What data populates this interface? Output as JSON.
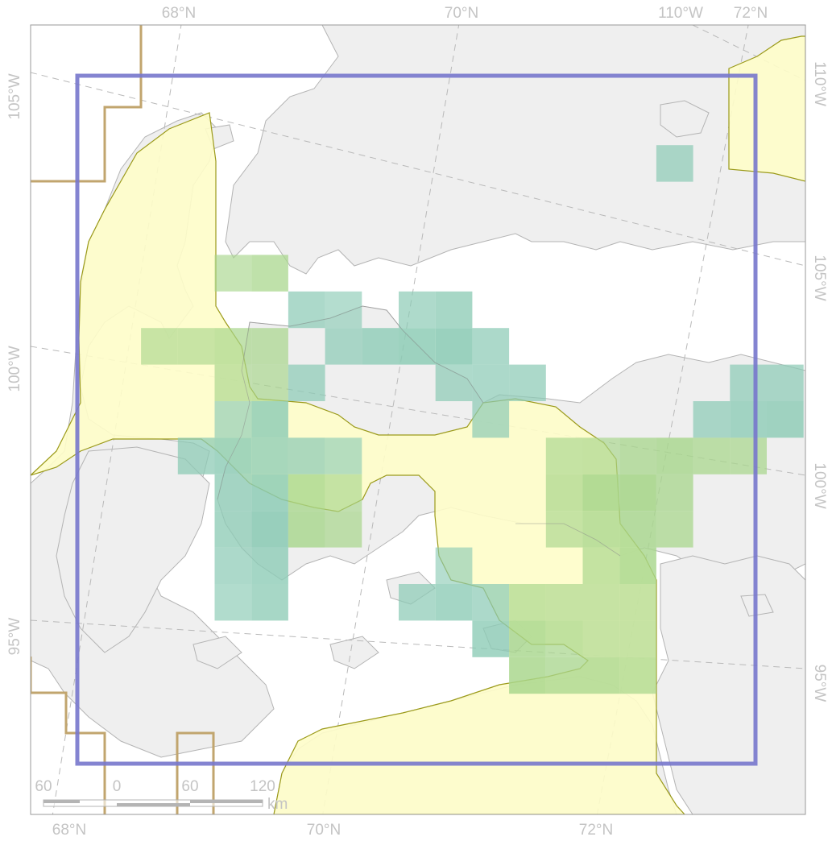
{
  "graticule_labels": {
    "top": [
      "68°N",
      "70°N",
      "110°W",
      "72°N"
    ],
    "bottom": [
      "68°N",
      "70°N",
      "72°N"
    ],
    "left": [
      "105°W",
      "100°W",
      "95°W"
    ],
    "right": [
      "110°W",
      "105°W",
      "100°W",
      "95°W"
    ]
  },
  "scale_bar": {
    "ticks": [
      "60",
      "0",
      "60",
      "120"
    ],
    "unit": "km"
  },
  "colors": {
    "background": "#ffffff",
    "land": "#efefef",
    "coast": "#b4b4b4",
    "graticule": "#b9b9b9",
    "zone_fill": "#fefdc9",
    "zone_edge": "#9b9a1a",
    "grid_teal": "#8ccbb5",
    "grid_green": "#a8d68c",
    "frame": "#7777cc",
    "boundary": "#c1a56e"
  },
  "sighting_grid_cells": [
    {
      "col": 5,
      "row": 6,
      "density": 0.45
    },
    {
      "col": 6,
      "row": 6,
      "density": 0.65
    },
    {
      "col": 7,
      "row": 7,
      "density": 0.6
    },
    {
      "col": 8,
      "row": 7,
      "density": 0.45
    },
    {
      "col": 10,
      "row": 7,
      "density": 0.55
    },
    {
      "col": 11,
      "row": 7,
      "density": 0.7
    },
    {
      "col": 3,
      "row": 8,
      "density": 0.4
    },
    {
      "col": 4,
      "row": 8,
      "density": 0.4
    },
    {
      "col": 5,
      "row": 8,
      "density": 0.55
    },
    {
      "col": 6,
      "row": 8,
      "density": 0.55
    },
    {
      "col": 8,
      "row": 8,
      "density": 0.6
    },
    {
      "col": 9,
      "row": 8,
      "density": 0.75
    },
    {
      "col": 10,
      "row": 8,
      "density": 0.85
    },
    {
      "col": 11,
      "row": 8,
      "density": 0.95
    },
    {
      "col": 12,
      "row": 8,
      "density": 0.6
    },
    {
      "col": 5,
      "row": 9,
      "density": 0.45
    },
    {
      "col": 6,
      "row": 9,
      "density": 0.5
    },
    {
      "col": 7,
      "row": 9,
      "density": 0.6
    },
    {
      "col": 11,
      "row": 9,
      "density": 0.55
    },
    {
      "col": 12,
      "row": 9,
      "density": 0.6
    },
    {
      "col": 13,
      "row": 9,
      "density": 0.6
    },
    {
      "col": 19,
      "row": 9,
      "density": 0.6
    },
    {
      "col": 20,
      "row": 9,
      "density": 0.6
    },
    {
      "col": 5,
      "row": 10,
      "density": 0.45
    },
    {
      "col": 6,
      "row": 10,
      "density": 0.8
    },
    {
      "col": 12,
      "row": 10,
      "density": 0.55
    },
    {
      "col": 18,
      "row": 10,
      "density": 0.6
    },
    {
      "col": 19,
      "row": 10,
      "density": 0.75
    },
    {
      "col": 20,
      "row": 10,
      "density": 0.8
    },
    {
      "col": 4,
      "row": 11,
      "density": 0.65
    },
    {
      "col": 5,
      "row": 11,
      "density": 0.8
    },
    {
      "col": 6,
      "row": 11,
      "density": 0.7
    },
    {
      "col": 7,
      "row": 11,
      "density": 0.6
    },
    {
      "col": 8,
      "row": 11,
      "density": 0.4
    },
    {
      "col": 14,
      "row": 11,
      "density": 0.45
    },
    {
      "col": 15,
      "row": 11,
      "density": 0.5
    },
    {
      "col": 16,
      "row": 11,
      "density": 0.7
    },
    {
      "col": 17,
      "row": 11,
      "density": 0.8
    },
    {
      "col": 18,
      "row": 11,
      "density": 0.65
    },
    {
      "col": 19,
      "row": 11,
      "density": 0.6
    },
    {
      "col": 5,
      "row": 12,
      "density": 0.7
    },
    {
      "col": 6,
      "row": 12,
      "density": 0.85
    },
    {
      "col": 7,
      "row": 12,
      "density": 0.75
    },
    {
      "col": 8,
      "row": 12,
      "density": 0.45
    },
    {
      "col": 14,
      "row": 12,
      "density": 0.55
    },
    {
      "col": 15,
      "row": 12,
      "density": 0.95
    },
    {
      "col": 16,
      "row": 12,
      "density": 1.0
    },
    {
      "col": 17,
      "row": 12,
      "density": 0.7
    },
    {
      "col": 5,
      "row": 13,
      "density": 0.7
    },
    {
      "col": 6,
      "row": 13,
      "density": 0.95
    },
    {
      "col": 7,
      "row": 13,
      "density": 0.8
    },
    {
      "col": 8,
      "row": 13,
      "density": 0.55
    },
    {
      "col": 14,
      "row": 13,
      "density": 0.45
    },
    {
      "col": 15,
      "row": 13,
      "density": 0.7
    },
    {
      "col": 16,
      "row": 13,
      "density": 0.8
    },
    {
      "col": 17,
      "row": 13,
      "density": 0.65
    },
    {
      "col": 5,
      "row": 14,
      "density": 0.6
    },
    {
      "col": 6,
      "row": 14,
      "density": 0.75
    },
    {
      "col": 11,
      "row": 14,
      "density": 0.4
    },
    {
      "col": 15,
      "row": 14,
      "density": 0.5
    },
    {
      "col": 16,
      "row": 14,
      "density": 0.8
    },
    {
      "col": 5,
      "row": 15,
      "density": 0.5
    },
    {
      "col": 6,
      "row": 15,
      "density": 0.7
    },
    {
      "col": 10,
      "row": 15,
      "density": 0.6
    },
    {
      "col": 11,
      "row": 15,
      "density": 0.75
    },
    {
      "col": 12,
      "row": 15,
      "density": 0.6
    },
    {
      "col": 13,
      "row": 15,
      "density": 0.5
    },
    {
      "col": 14,
      "row": 15,
      "density": 0.45
    },
    {
      "col": 15,
      "row": 15,
      "density": 0.45
    },
    {
      "col": 16,
      "row": 15,
      "density": 0.45
    },
    {
      "col": 12,
      "row": 16,
      "density": 0.75
    },
    {
      "col": 13,
      "row": 16,
      "density": 0.8
    },
    {
      "col": 14,
      "row": 16,
      "density": 0.6
    },
    {
      "col": 15,
      "row": 16,
      "density": 0.45
    },
    {
      "col": 16,
      "row": 16,
      "density": 0.45
    },
    {
      "col": 13,
      "row": 17,
      "density": 0.85
    },
    {
      "col": 14,
      "row": 17,
      "density": 0.7
    },
    {
      "col": 15,
      "row": 17,
      "density": 0.7
    },
    {
      "col": 16,
      "row": 17,
      "density": 0.6
    },
    {
      "col": 17,
      "row": 3,
      "density": 0.55
    }
  ]
}
